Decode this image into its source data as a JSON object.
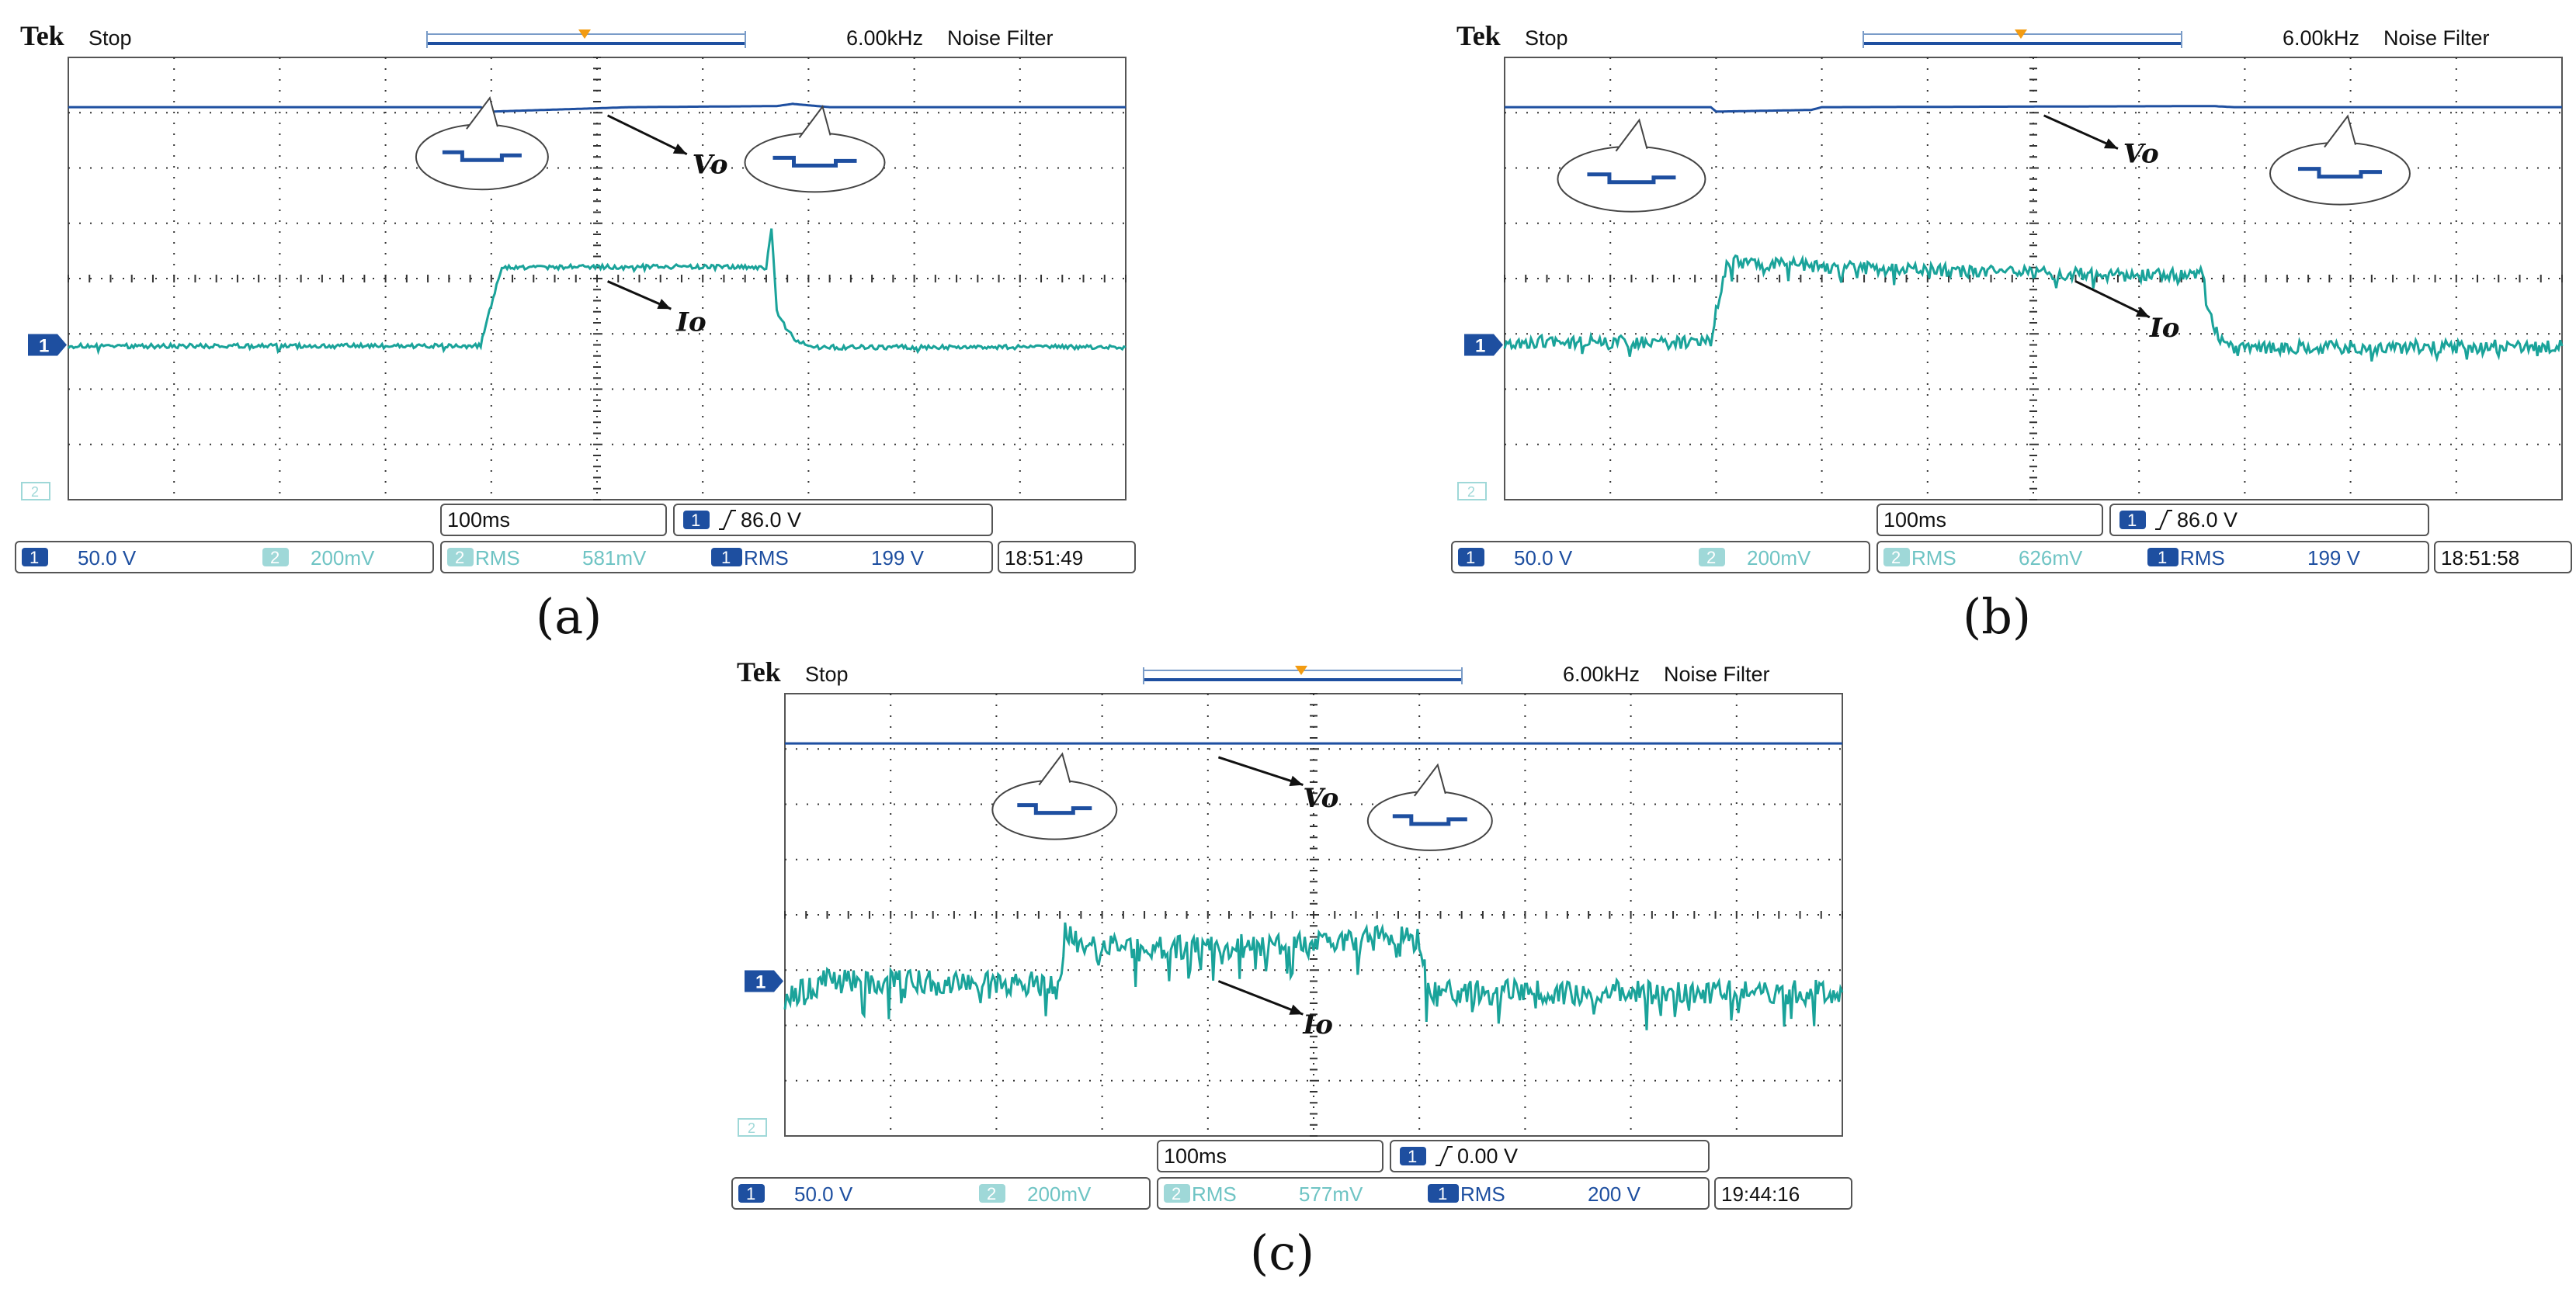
{
  "colors": {
    "ch1": "#1e4fa0",
    "ch2": "#1aa39a",
    "grid": "#333333",
    "trigger": "#f39c12"
  },
  "icons": [
    "trigger-marker-icon",
    "ch1-ground-marker-icon",
    "ch2-marker-icon",
    "rising-edge-icon",
    "callout-bubble-icon",
    "arrow-icon"
  ],
  "chart_data": [
    {
      "type": "line",
      "panel": "a",
      "header": {
        "brand": "Tek",
        "state": "Stop",
        "freq": "6.00kHz",
        "filter": "Noise Filter"
      },
      "footer": {
        "timebase": "100ms",
        "trigger_level": "86.0 V",
        "ch1_scale": "50.0 V",
        "ch2_scale": "200mV",
        "rms_ch2_label": "RMS",
        "rms_ch2": "581mV",
        "rms_ch1_label": "RMS",
        "rms_ch1": "199 V",
        "time": "18:51:49"
      },
      "annotations": {
        "vo": "Vo",
        "io": "Io"
      },
      "caption": "(a)",
      "axes": {
        "x_div": 10,
        "y_div": 8,
        "x_unit_per_div": "100ms"
      },
      "series": [
        {
          "name": "Vo",
          "channel": "1",
          "x": [
            0,
            3.9,
            4.0,
            4.5,
            5.0,
            5.3,
            6.7,
            6.85,
            7.2,
            10
          ],
          "y": [
            7.1,
            7.1,
            7.02,
            7.05,
            7.08,
            7.1,
            7.12,
            7.16,
            7.1,
            7.1
          ]
        },
        {
          "name": "Io",
          "channel": "2",
          "x": [
            0,
            3.9,
            3.95,
            4.1,
            5.5,
            6.6,
            6.65,
            6.7,
            6.8,
            6.9,
            7.1,
            10
          ],
          "y": [
            2.78,
            2.78,
            3.2,
            4.2,
            4.22,
            4.2,
            4.9,
            3.4,
            3.05,
            2.85,
            2.76,
            2.76
          ]
        }
      ]
    },
    {
      "type": "line",
      "panel": "b",
      "header": {
        "brand": "Tek",
        "state": "Stop",
        "freq": "6.00kHz",
        "filter": "Noise Filter"
      },
      "footer": {
        "timebase": "100ms",
        "trigger_level": "86.0 V",
        "ch1_scale": "50.0 V",
        "ch2_scale": "200mV",
        "rms_ch2_label": "RMS",
        "rms_ch2": "626mV",
        "rms_ch1_label": "RMS",
        "rms_ch1": "199 V",
        "time": "18:51:58"
      },
      "annotations": {
        "vo": "Vo",
        "io": "Io"
      },
      "caption": "(b)",
      "axes": {
        "x_div": 10,
        "y_div": 8,
        "x_unit_per_div": "100ms"
      },
      "series": [
        {
          "name": "Vo",
          "channel": "1",
          "x": [
            0,
            1.95,
            2.0,
            2.9,
            3.0,
            6.7,
            6.9,
            10
          ],
          "y": [
            7.1,
            7.1,
            7.02,
            7.05,
            7.1,
            7.12,
            7.1,
            7.1
          ]
        },
        {
          "name": "Io",
          "channel": "2",
          "x": [
            0,
            1.95,
            2.0,
            2.1,
            4.0,
            6.0,
            6.6,
            6.65,
            6.75,
            6.9,
            7.2,
            10
          ],
          "y": [
            2.85,
            2.85,
            3.4,
            4.3,
            4.15,
            4.05,
            4.1,
            3.4,
            2.95,
            2.7,
            2.75,
            2.78
          ]
        }
      ]
    },
    {
      "type": "line",
      "panel": "c",
      "header": {
        "brand": "Tek",
        "state": "Stop",
        "freq": "6.00kHz",
        "filter": "Noise Filter"
      },
      "footer": {
        "timebase": "100ms",
        "trigger_level": "0.00 V",
        "ch1_scale": "50.0 V",
        "ch2_scale": "200mV",
        "rms_ch2_label": "RMS",
        "rms_ch2": "577mV",
        "rms_ch1_label": "RMS",
        "rms_ch1": "200 V",
        "time": "19:44:16"
      },
      "annotations": {
        "vo": "Vo",
        "io": "Io"
      },
      "caption": "(c)",
      "axes": {
        "x_div": 10,
        "y_div": 8,
        "x_unit_per_div": "100ms"
      },
      "series": [
        {
          "name": "Vo",
          "channel": "1",
          "x": [
            0,
            10
          ],
          "y": [
            7.1,
            7.1
          ]
        },
        {
          "name": "Io",
          "channel": "2",
          "x": [
            0,
            0.4,
            2.6,
            2.65,
            2.8,
            5.0,
            5.5,
            6.0,
            6.1,
            10
          ],
          "y": [
            2.5,
            2.8,
            2.75,
            3.7,
            3.4,
            3.45,
            3.6,
            3.55,
            2.6,
            2.6
          ]
        }
      ]
    }
  ]
}
